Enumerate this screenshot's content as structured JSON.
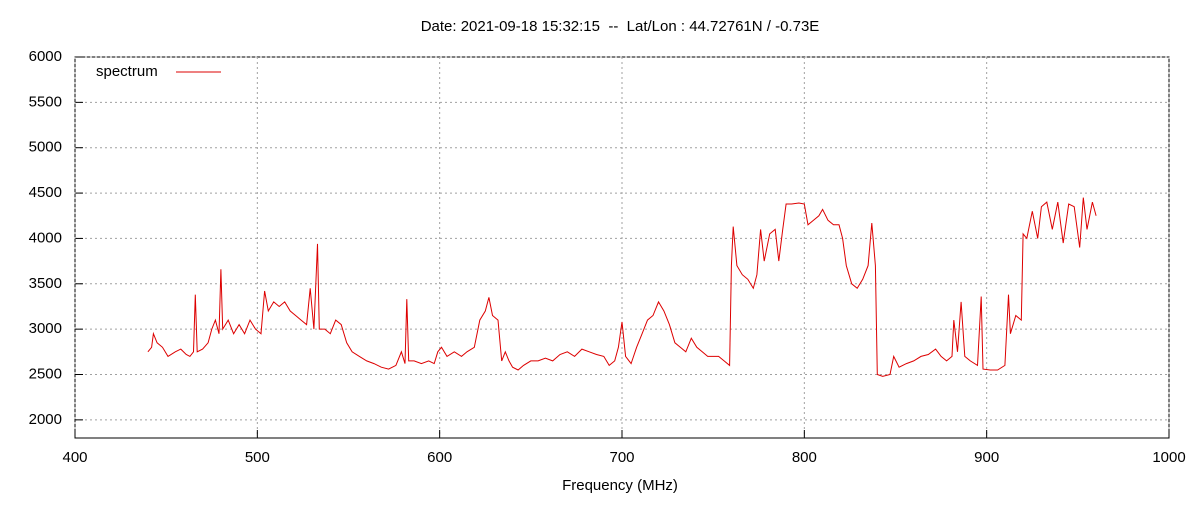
{
  "chart_data": {
    "type": "line",
    "title": "Date: 2021-09-18 15:32:15  --  Lat/Lon : 44.72761N / -0.73E",
    "x_label": "Frequency (MHz)",
    "xlim": [
      400,
      1000
    ],
    "xticks": [
      400,
      500,
      600,
      700,
      800,
      900,
      1000
    ],
    "ylim": [
      1800,
      6000
    ],
    "yticks": [
      2000,
      2500,
      3000,
      3500,
      4000,
      4500,
      5000,
      5500,
      6000
    ],
    "grid": true,
    "legend": "top-left",
    "x": [
      440,
      442,
      443,
      445,
      448,
      451,
      455,
      458,
      461,
      463,
      465,
      466,
      467,
      470,
      473,
      475,
      477,
      479,
      480,
      481,
      484,
      487,
      490,
      493,
      496,
      499,
      502,
      504,
      506,
      509,
      512,
      515,
      518,
      521,
      524,
      527,
      529,
      531,
      533,
      534,
      537,
      540,
      543,
      546,
      549,
      552,
      556,
      560,
      564,
      568,
      572,
      576,
      579,
      581,
      582,
      583,
      586,
      590,
      594,
      597,
      599,
      601,
      604,
      608,
      612,
      615,
      619,
      622,
      625,
      627,
      629,
      632,
      634,
      636,
      638,
      640,
      643,
      646,
      650,
      654,
      658,
      662,
      666,
      670,
      674,
      678,
      682,
      686,
      690,
      693,
      696,
      698,
      700,
      702,
      705,
      708,
      711,
      714,
      717,
      720,
      723,
      726,
      729,
      732,
      735,
      738,
      741,
      744,
      747,
      750,
      753,
      756,
      759,
      760,
      761,
      763,
      766,
      769,
      772,
      774,
      776,
      778,
      781,
      784,
      786,
      788,
      790,
      793,
      797,
      800,
      802,
      805,
      808,
      810,
      813,
      816,
      819,
      821,
      823,
      826,
      829,
      832,
      835,
      837,
      839,
      840,
      843,
      847,
      849,
      852,
      856,
      860,
      864,
      868,
      872,
      875,
      878,
      881,
      882,
      884,
      886,
      888,
      891,
      895,
      897,
      898,
      902,
      906,
      910,
      912,
      913,
      916,
      919,
      920,
      922,
      925,
      928,
      930,
      933,
      936,
      939,
      942,
      945,
      948,
      951,
      953,
      955,
      958,
      960
    ],
    "series": [
      {
        "name": "spectrum",
        "color": "#dd0000",
        "values": [
          2750,
          2800,
          2950,
          2850,
          2800,
          2700,
          2750,
          2780,
          2720,
          2700,
          2750,
          3380,
          2750,
          2780,
          2850,
          3000,
          3100,
          2950,
          3660,
          3000,
          3100,
          2950,
          3050,
          2950,
          3100,
          3000,
          2950,
          3420,
          3200,
          3300,
          3250,
          3300,
          3200,
          3150,
          3100,
          3050,
          3450,
          3000,
          3940,
          3000,
          3000,
          2950,
          3100,
          3050,
          2850,
          2750,
          2700,
          2650,
          2620,
          2580,
          2560,
          2600,
          2750,
          2620,
          3330,
          2650,
          2650,
          2620,
          2650,
          2620,
          2750,
          2800,
          2700,
          2750,
          2700,
          2750,
          2800,
          3100,
          3200,
          3350,
          3150,
          3100,
          2650,
          2750,
          2650,
          2580,
          2550,
          2600,
          2650,
          2650,
          2680,
          2650,
          2720,
          2750,
          2700,
          2780,
          2750,
          2720,
          2700,
          2600,
          2650,
          2800,
          3080,
          2700,
          2620,
          2800,
          2950,
          3100,
          3150,
          3300,
          3200,
          3050,
          2850,
          2800,
          2750,
          2900,
          2800,
          2750,
          2700,
          2700,
          2700,
          2650,
          2600,
          3700,
          4130,
          3700,
          3600,
          3550,
          3450,
          3600,
          4100,
          3750,
          4050,
          4100,
          3750,
          4080,
          4380,
          4380,
          4390,
          4380,
          4150,
          4200,
          4250,
          4320,
          4200,
          4150,
          4150,
          4000,
          3700,
          3500,
          3450,
          3550,
          3700,
          4170,
          3700,
          2500,
          2480,
          2500,
          2700,
          2580,
          2620,
          2650,
          2700,
          2720,
          2780,
          2700,
          2650,
          2700,
          3100,
          2750,
          3300,
          2700,
          2650,
          2600,
          3360,
          2560,
          2550,
          2550,
          2600,
          3380,
          2950,
          3150,
          3100,
          4050,
          4000,
          4300,
          4000,
          4350,
          4400,
          4100,
          4400,
          3950,
          4380,
          4350,
          3900,
          4450,
          4100,
          4400,
          4250
        ]
      }
    ]
  }
}
